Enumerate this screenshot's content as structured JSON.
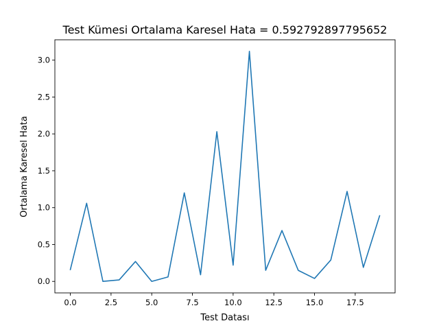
{
  "chart_data": {
    "type": "line",
    "title": "Test Kümesi Ortalama Karesel Hata = 0.592792897795652",
    "xlabel": "Test Datası",
    "ylabel": "Ortalama Karesel Hata",
    "xlim": [
      -0.95,
      19.95
    ],
    "ylim": [
      -0.156,
      3.276
    ],
    "x_ticks": [
      0,
      2.5,
      5,
      7.5,
      10,
      12.5,
      15,
      17.5
    ],
    "x_tick_labels": [
      "0.0",
      "2.5",
      "5.0",
      "7.5",
      "10.0",
      "12.5",
      "15.0",
      "17.5"
    ],
    "y_ticks": [
      0,
      0.5,
      1.0,
      1.5,
      2.0,
      2.5,
      3.0
    ],
    "y_tick_labels": [
      "0.0",
      "0.5",
      "1.0",
      "1.5",
      "2.0",
      "2.5",
      "3.0"
    ],
    "grid": false,
    "series": [
      {
        "color": "#1f77b4",
        "x": [
          0,
          1,
          2,
          3,
          4,
          5,
          6,
          7,
          8,
          9,
          10,
          11,
          12,
          13,
          14,
          15,
          16,
          17,
          18,
          19
        ],
        "y": [
          0.16,
          1.06,
          0.0,
          0.02,
          0.27,
          0.0,
          0.06,
          1.2,
          0.09,
          2.03,
          0.22,
          3.12,
          0.15,
          0.69,
          0.15,
          0.04,
          0.29,
          1.22,
          0.19,
          0.89
        ]
      }
    ]
  }
}
